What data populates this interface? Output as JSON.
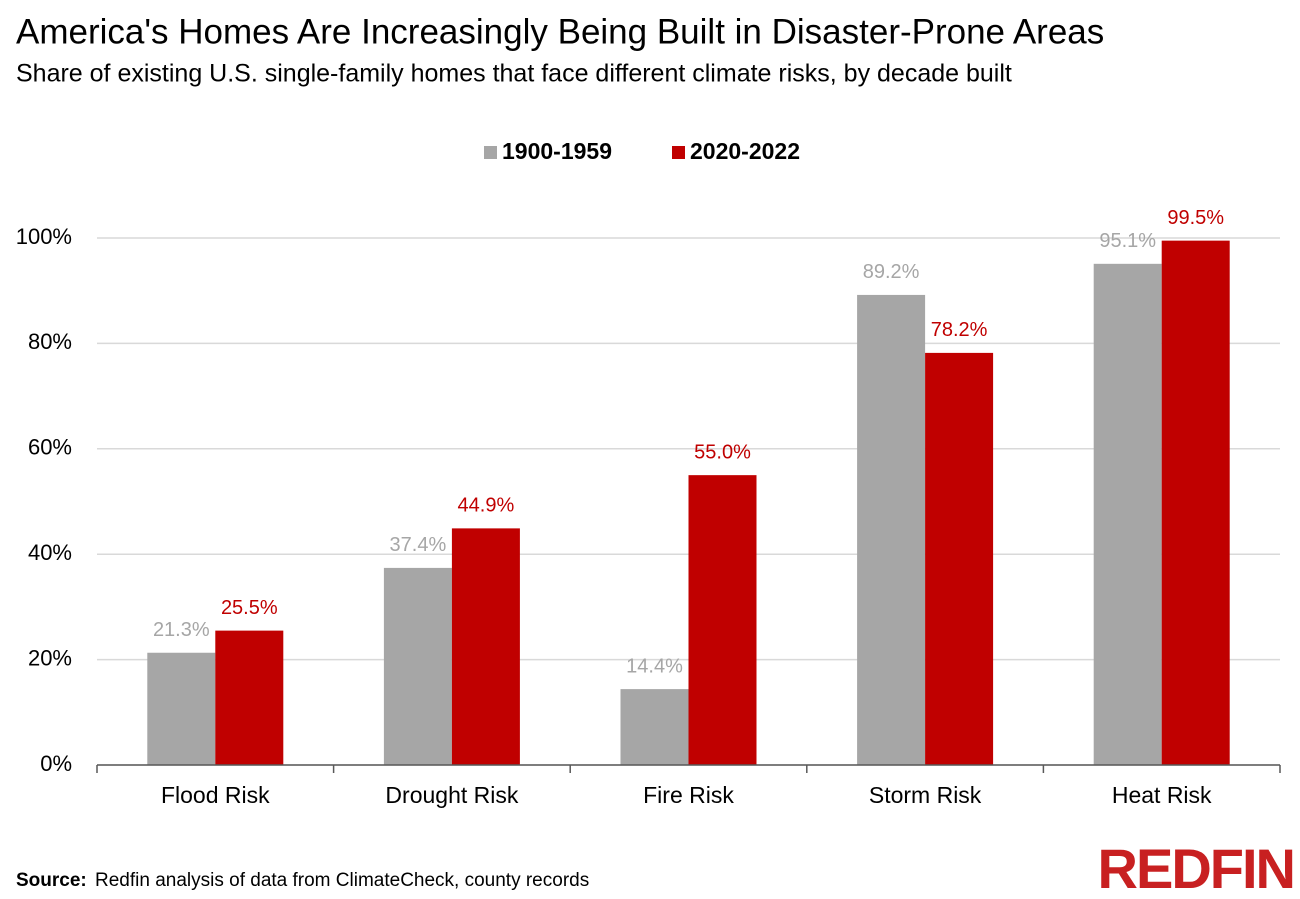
{
  "chart_data": {
    "type": "bar",
    "title": "America's Homes Are Increasingly Being Built in Disaster-Prone Areas",
    "subtitle": "Share of existing U.S. single-family homes that face different climate risks, by decade built",
    "categories": [
      "Flood Risk",
      "Drought Risk",
      "Fire Risk",
      "Storm Risk",
      "Heat Risk"
    ],
    "series": [
      {
        "name": "1900-1959",
        "color": "#a6a6a6",
        "values": [
          21.3,
          37.4,
          14.4,
          89.2,
          95.1
        ],
        "value_labels": [
          "21.3%",
          "37.4%",
          "14.4%",
          "89.2%",
          "95.1%"
        ]
      },
      {
        "name": "2020-2022",
        "color": "#c00000",
        "values": [
          25.5,
          44.9,
          55.0,
          78.2,
          99.5
        ],
        "value_labels": [
          "25.5%",
          "44.9%",
          "55.0%",
          "78.2%",
          "99.5%"
        ]
      }
    ],
    "ylim": [
      0,
      100
    ],
    "yticks": [
      {
        "value": 0,
        "label": "0%"
      },
      {
        "value": 20,
        "label": "20%"
      },
      {
        "value": 40,
        "label": "40%"
      },
      {
        "value": 60,
        "label": "60%"
      },
      {
        "value": 80,
        "label": "80%"
      },
      {
        "value": 100,
        "label": "100%"
      }
    ],
    "grid": true,
    "legend": "top",
    "source_label": "Source:",
    "source": "Redfin analysis of data from ClimateCheck, county records",
    "logo": "REDFIN"
  }
}
